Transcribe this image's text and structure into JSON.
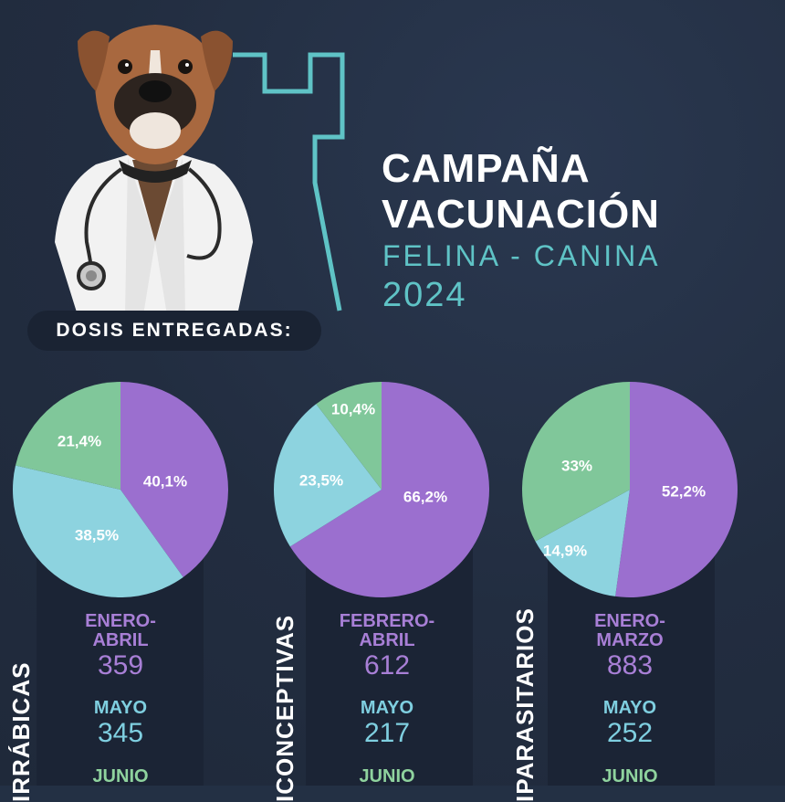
{
  "title": {
    "line1": "CAMPAÑA",
    "line2": "VACUNACIÓN",
    "subtitle": "FELINA - CANINA",
    "year": "2024"
  },
  "dosis_label": "DOSIS ENTREGADAS:",
  "colors": {
    "background": "#233044",
    "teal": "#5fc3c6",
    "purple": "#9b6fcf",
    "blue": "#8dd3df",
    "green": "#80c79a"
  },
  "icons": [
    "boxer-dog-veterinarian-illustration",
    "stethoscope-icon"
  ],
  "columns": [
    {
      "category_label": "IRRÁBICAS",
      "periods": [
        {
          "label": "ENERO-ABRIL",
          "line1": "ENERO-",
          "line2": "ABRIL",
          "value": "359"
        },
        {
          "label": "MAYO",
          "value": "345"
        },
        {
          "label": "JUNIO"
        }
      ]
    },
    {
      "category_label": "ICONCEPTIVAS",
      "periods": [
        {
          "label": "FEBRERO-ABRIL",
          "line1": "FEBRERO-",
          "line2": "ABRIL",
          "value": "612"
        },
        {
          "label": "MAYO",
          "value": "217"
        },
        {
          "label": "JUNIO"
        }
      ]
    },
    {
      "category_label": "IPARASITARIOS",
      "periods": [
        {
          "label": "ENERO-MARZO",
          "line1": "ENERO-",
          "line2": "MARZO",
          "value": "883"
        },
        {
          "label": "MAYO",
          "value": "252"
        },
        {
          "label": "JUNIO"
        }
      ]
    }
  ],
  "chart_data": [
    {
      "type": "pie",
      "slices": [
        {
          "period": "ENERO-ABRIL",
          "value": 40.1,
          "label": "40,1%",
          "color": "#9b6fcf"
        },
        {
          "period": "MAYO",
          "value": 38.5,
          "label": "38,5%",
          "color": "#8dd3df"
        },
        {
          "period": "JUNIO",
          "value": 21.4,
          "label": "21,4%",
          "color": "#80c79a"
        }
      ]
    },
    {
      "type": "pie",
      "slices": [
        {
          "period": "FEBRERO-ABRIL",
          "value": 66.2,
          "label": "66,2%",
          "color": "#9b6fcf"
        },
        {
          "period": "MAYO",
          "value": 23.5,
          "label": "23,5%",
          "color": "#8dd3df"
        },
        {
          "period": "JUNIO",
          "value": 10.4,
          "label": "10,4%",
          "color": "#80c79a"
        }
      ]
    },
    {
      "type": "pie",
      "slices": [
        {
          "period": "ENERO-MARZO",
          "value": 52.2,
          "label": "52,2%",
          "color": "#9b6fcf"
        },
        {
          "period": "MAYO",
          "value": 14.9,
          "label": "14,9%",
          "color": "#8dd3df"
        },
        {
          "period": "JUNIO",
          "value": 33,
          "label": "33%",
          "color": "#80c79a"
        }
      ]
    }
  ]
}
